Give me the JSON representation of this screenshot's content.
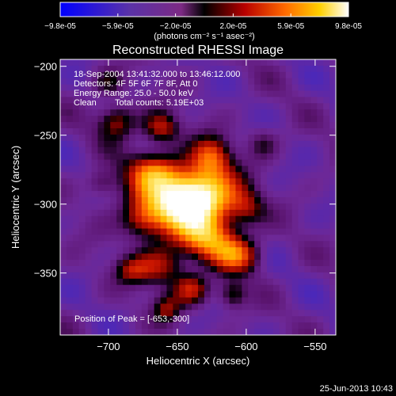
{
  "chart_data": {
    "type": "heatmap",
    "title": "Reconstructed RHESSI Image",
    "xlabel": "Heliocentric X (arcsec)",
    "ylabel": "Heliocentric Y (arcsec)",
    "xlim": [
      -735,
      -535
    ],
    "ylim": [
      -395,
      -195
    ],
    "xticks": [
      -700,
      -650,
      -600,
      -550
    ],
    "yticks": [
      -200,
      -250,
      -300,
      -350
    ],
    "colorbar": {
      "range": [
        -9.8e-05,
        9.8e-05
      ],
      "tick_labels": [
        "-9.8e-05",
        "-5.9e-05",
        "-2.0e-05",
        "2.0e-05",
        "5.9e-05",
        "9.8e-05"
      ],
      "unit_label": "(photons cm⁻² s⁻¹ asec⁻²)"
    },
    "annotations": {
      "time": "18-Sep-2004 13:41:32.000 to 13:46:12.000",
      "detectors": "Detectors: 4F 5F 6F 7F 8F, Att 0",
      "energy": "Energy Range: 25.0 - 50.0 keV",
      "method": "Clean",
      "counts": "Total counts: 5.19E+03",
      "peak": "Position of Peak = [-653,-300]"
    },
    "emission_blobs": [
      {
        "x": -650,
        "y": -300,
        "sx": 22,
        "sy": 16,
        "amp": 1.0
      },
      {
        "x": -632,
        "y": -293,
        "sx": 18,
        "sy": 14,
        "amp": 0.85
      },
      {
        "x": -668,
        "y": -276,
        "sx": 13,
        "sy": 10,
        "amp": 0.6
      },
      {
        "x": -625,
        "y": -265,
        "sx": 10,
        "sy": 10,
        "amp": 0.6
      },
      {
        "x": -662,
        "y": -245,
        "sx": 9,
        "sy": 8,
        "amp": 0.55
      },
      {
        "x": -694,
        "y": -240,
        "sx": 10,
        "sy": 9,
        "amp": 0.5
      },
      {
        "x": -628,
        "y": -325,
        "sx": 14,
        "sy": 11,
        "amp": 0.7
      },
      {
        "x": -606,
        "y": -337,
        "sx": 12,
        "sy": 9,
        "amp": 0.65
      },
      {
        "x": -662,
        "y": -345,
        "sx": 12,
        "sy": 10,
        "amp": 0.5
      },
      {
        "x": -640,
        "y": -362,
        "sx": 9,
        "sy": 8,
        "amp": 0.55
      },
      {
        "x": -683,
        "y": -348,
        "sx": 9,
        "sy": 7,
        "amp": 0.4
      },
      {
        "x": -676,
        "y": -312,
        "sx": 10,
        "sy": 9,
        "amp": 0.35
      },
      {
        "x": -610,
        "y": -366,
        "sx": 7,
        "sy": 7,
        "amp": 0.4
      },
      {
        "x": -658,
        "y": -376,
        "sx": 7,
        "sy": 7,
        "amp": 0.4
      },
      {
        "x": -600,
        "y": -303,
        "sx": 9,
        "sy": 9,
        "amp": 0.35
      },
      {
        "x": -588,
        "y": -256,
        "sx": 8,
        "sy": 8,
        "amp": 0.25
      },
      {
        "x": -700,
        "y": -212,
        "sx": 8,
        "sy": 7,
        "amp": 0.3
      },
      {
        "x": -705,
        "y": -285,
        "sx": 8,
        "sy": 7,
        "amp": 0.3
      }
    ]
  },
  "footer": {
    "date": "25-Jun-2013 10:43"
  }
}
